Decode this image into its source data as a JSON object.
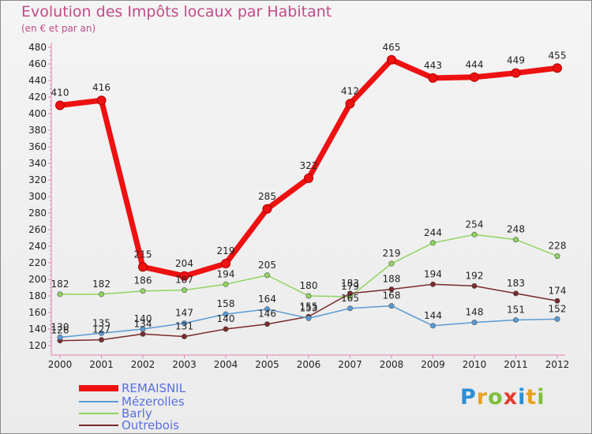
{
  "title": "Evolution des Impôts locaux par Habitant",
  "subtitle": "(en € et par an)",
  "brand": {
    "text": "Proxiti",
    "letters": [
      "P",
      "r",
      "o",
      "x",
      "i",
      "t",
      "i"
    ],
    "colors": [
      "#2a8fd6",
      "#e8a21f",
      "#7fbf3a",
      "#e33b2e",
      "#2a8fd6",
      "#e8a21f",
      "#7fbf3a"
    ]
  },
  "chart_data": {
    "type": "line",
    "title": "Evolution des Impôts locaux par Habitant",
    "subtitle": "(en € et par an)",
    "x": [
      "2000",
      "2001",
      "2002",
      "2003",
      "2004",
      "2005",
      "2006",
      "2007",
      "2008",
      "2009",
      "2010",
      "2011",
      "2012"
    ],
    "ylim": [
      120,
      480
    ],
    "yticks": [
      120,
      140,
      160,
      180,
      200,
      220,
      240,
      260,
      280,
      300,
      320,
      340,
      360,
      380,
      400,
      420,
      440,
      460,
      480
    ],
    "grid": false,
    "legend": "bottom-left",
    "series": [
      {
        "name": "REMAISNIL",
        "color": "#ee1111",
        "width": 7,
        "marker": 5.5,
        "values": [
          410,
          416,
          215,
          204,
          219,
          285,
          322,
          412,
          465,
          443,
          444,
          449,
          455
        ],
        "labels": [
          "410",
          "416",
          "215",
          "204",
          "219",
          "285",
          "322",
          "412",
          "465",
          "443",
          "444",
          "449",
          "455"
        ]
      },
      {
        "name": "Mézerolles",
        "color": "#5a9bd5",
        "width": 1.5,
        "marker": 3.2,
        "values": [
          130,
          135,
          140,
          147,
          158,
          164,
          153,
          165,
          168,
          144,
          148,
          151,
          152
        ],
        "labels": [
          "130",
          "135",
          "140",
          "147",
          "158",
          "164",
          "153",
          "165",
          "168",
          "144",
          "148",
          "151",
          "152"
        ]
      },
      {
        "name": "Barly",
        "color": "#8fd45f",
        "width": 1.5,
        "marker": 3.2,
        "values": [
          182,
          182,
          186,
          187,
          194,
          205,
          180,
          179,
          219,
          244,
          254,
          248,
          228
        ],
        "labels": [
          "182",
          "182",
          "186",
          "187",
          "194",
          "205",
          "180",
          "179",
          "219",
          "244",
          "254",
          "248",
          "228"
        ]
      },
      {
        "name": "Outrebois",
        "color": "#7a2a2a",
        "width": 1.5,
        "marker": 3.2,
        "values": [
          126,
          127,
          134,
          131,
          140,
          146,
          155,
          183,
          188,
          194,
          192,
          183,
          174
        ],
        "labels": [
          "126",
          "127",
          "134",
          "131",
          "140",
          "146",
          "155",
          "183",
          "188",
          "194",
          "192",
          "183",
          "174"
        ]
      }
    ]
  }
}
